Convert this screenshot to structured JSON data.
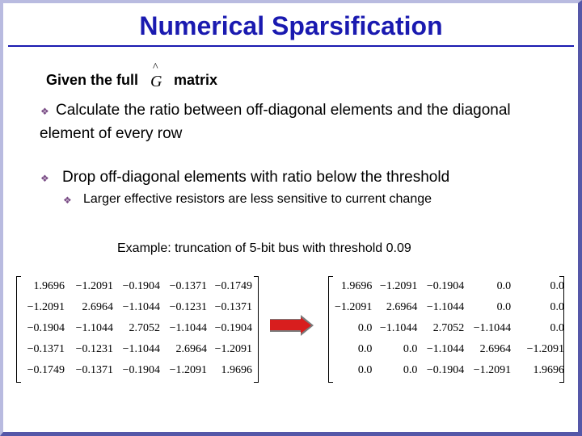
{
  "slide": {
    "title": "Numerical Sparsification",
    "given_prefix": "Given the full",
    "matrix_symbol": "G",
    "matrix_symbol_accent": "^",
    "given_suffix": "matrix",
    "bullet_1_line_1": "Calculate the ratio between off-diagonal elements and the diagonal",
    "bullet_1_line_2": "element of every row",
    "bullet_2": "Drop off-diagonal elements with ratio below the threshold",
    "sub_bullet": "Larger effective resistors are less sensitive to current change",
    "example": "Example: truncation of 5-bit bus with threshold 0.09",
    "bullet_glyph": "❖",
    "colors": {
      "title": "#1a1ab0",
      "bullet": "#7a4d86",
      "arrow": "#d81e1e",
      "frame": "#5557a8"
    }
  },
  "matrix_before": [
    [
      "1.9696",
      "−1.2091",
      "−0.1904",
      "−0.1371",
      "−0.1749"
    ],
    [
      "−1.2091",
      "2.6964",
      "−1.1044",
      "−0.1231",
      "−0.1371"
    ],
    [
      "−0.1904",
      "−1.1044",
      "2.7052",
      "−1.1044",
      "−0.1904"
    ],
    [
      "−0.1371",
      "−0.1231",
      "−1.1044",
      "2.6964",
      "−1.2091"
    ],
    [
      "−0.1749",
      "−0.1371",
      "−0.1904",
      "−1.2091",
      "1.9696"
    ]
  ],
  "matrix_after": [
    [
      "1.9696",
      "−1.2091",
      "−0.1904",
      "0.0",
      "0.0"
    ],
    [
      "−1.2091",
      "2.6964",
      "−1.1044",
      "0.0",
      "0.0"
    ],
    [
      "0.0",
      "−1.1044",
      "2.7052",
      "−1.1044",
      "0.0"
    ],
    [
      "0.0",
      "0.0",
      "−1.1044",
      "2.6964",
      "−1.2091"
    ],
    [
      "0.0",
      "0.0",
      "−0.1904",
      "−1.2091",
      "1.9696"
    ]
  ]
}
